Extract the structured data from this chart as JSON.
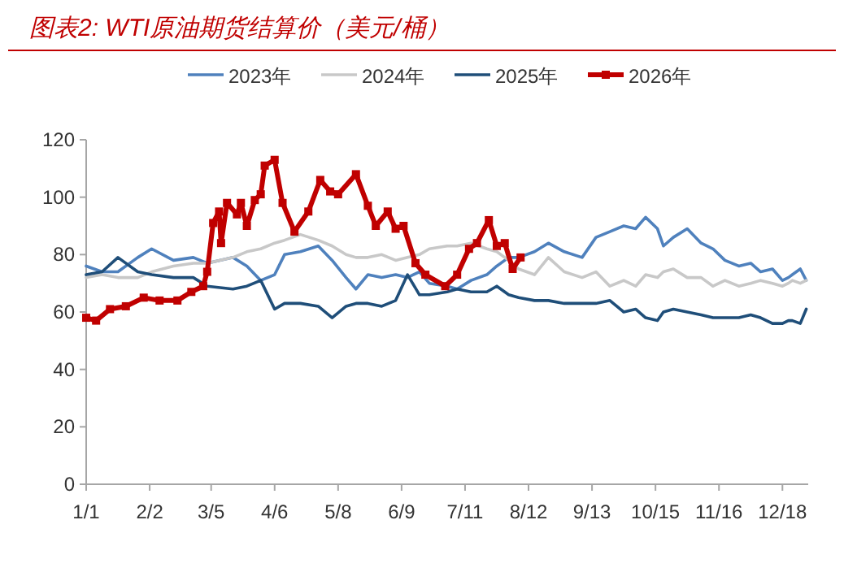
{
  "chart_data": {
    "type": "line",
    "title": "图表2:  WTI原油期货结算价（美元/桶）",
    "x": [
      "--01-01",
      "--01-09",
      "--01-17",
      "--01-27",
      "--02-03",
      "--02-14",
      "--02-24",
      "--03-03",
      "--03-16",
      "--03-23",
      "--03-30",
      "--04-06",
      "--04-11",
      "--04-19",
      "--04-28",
      "--05-05",
      "--05-12",
      "--05-17",
      "--05-23",
      "--05-30",
      "--06-06",
      "--06-12",
      "--06-18",
      "--06-23",
      "--07-02",
      "--07-07",
      "--07-14",
      "--07-22",
      "--07-27",
      "--08-02",
      "--08-07",
      "--08-15",
      "--08-22",
      "--08-30",
      "--09-08",
      "--09-15",
      "--09-22",
      "--09-29",
      "--10-05",
      "--10-10",
      "--10-16",
      "--10-19",
      "--10-24",
      "--10-31",
      "--11-07",
      "--11-13",
      "--11-19",
      "--11-26",
      "--12-02",
      "--12-07",
      "--12-13",
      "--12-18",
      "--12-21",
      "--12-23",
      "--12-27",
      "--12-30"
    ],
    "series": [
      {
        "name": "2023年",
        "color": "#4f81bd",
        "values": [
          76,
          74,
          74,
          79,
          82,
          78,
          79,
          77,
          79,
          76,
          71,
          73,
          80,
          81,
          83,
          78,
          72,
          68,
          73,
          72,
          73,
          72,
          74,
          70,
          69,
          68,
          71,
          73,
          76,
          79,
          79,
          81,
          84,
          81,
          79,
          86,
          88,
          90,
          89,
          93,
          89,
          83,
          86,
          89,
          84,
          82,
          78,
          76,
          77,
          74,
          75,
          71,
          72,
          73,
          75,
          71
        ]
      },
      {
        "name": "2024年",
        "color": "#c8c8c8",
        "values": [
          72,
          73,
          72,
          72,
          74,
          76,
          77,
          77,
          79,
          81,
          82,
          84,
          85,
          87,
          85,
          83,
          80,
          79,
          79,
          80,
          78,
          79,
          80,
          82,
          83,
          83,
          84,
          82,
          81,
          78,
          75,
          73,
          79,
          74,
          72,
          74,
          69,
          71,
          69,
          73,
          72,
          74,
          75,
          72,
          72,
          69,
          71,
          69,
          70,
          71,
          70,
          69,
          70,
          71,
          70,
          71
        ]
      },
      {
        "name": "2025年",
        "color": "#1f4e79",
        "values": [
          73,
          74,
          79,
          74,
          73,
          72,
          72,
          69,
          68,
          69,
          71,
          61,
          63,
          63,
          62,
          58,
          62,
          63,
          63,
          62,
          64,
          73,
          66,
          66,
          67,
          68,
          67,
          67,
          69,
          66,
          65,
          64,
          64,
          63,
          63,
          63,
          64,
          60,
          61,
          58,
          57,
          60,
          61,
          60,
          59,
          58,
          58,
          58,
          59,
          58,
          56,
          56,
          57,
          57,
          56,
          61
        ]
      },
      {
        "name": "2026年",
        "color": "#c00000",
        "marker": "square",
        "x": [
          "--01-01",
          "--01-06",
          "--01-13",
          "--01-21",
          "--01-30",
          "--02-07",
          "--02-16",
          "--02-23",
          "--03-01",
          "--03-03",
          "--03-06",
          "--03-09",
          "--03-10",
          "--03-13",
          "--03-18",
          "--03-20",
          "--03-23",
          "--03-27",
          "--03-30",
          "--04-01",
          "--04-06",
          "--04-10",
          "--04-16",
          "--04-23",
          "--04-29",
          "--05-04",
          "--05-08",
          "--05-17",
          "--05-23",
          "--05-27",
          "--06-02",
          "--06-06",
          "--06-10",
          "--06-16",
          "--06-21",
          "--07-01",
          "--07-07",
          "--07-13",
          "--07-17",
          "--07-23",
          "--07-27",
          "--07-31",
          "--08-04",
          "--08-08"
        ],
        "values": [
          58,
          57,
          61,
          62,
          65,
          64,
          64,
          67,
          69,
          74,
          91,
          95,
          84,
          98,
          94,
          98,
          90,
          99,
          101,
          111,
          113,
          98,
          88,
          95,
          106,
          102,
          101,
          108,
          97,
          90,
          95,
          89,
          90,
          77,
          73,
          69,
          73,
          82,
          84,
          92,
          83,
          84,
          75,
          79
        ]
      }
    ],
    "xlim": [
      "--01-01",
      "--12-31"
    ],
    "xticks": [
      {
        "value": "--01-01",
        "label": "1/1"
      },
      {
        "value": "--02-02",
        "label": "2/2"
      },
      {
        "value": "--03-05",
        "label": "3/5"
      },
      {
        "value": "--04-06",
        "label": "4/6"
      },
      {
        "value": "--05-08",
        "label": "5/8"
      },
      {
        "value": "--06-09",
        "label": "6/9"
      },
      {
        "value": "--07-11",
        "label": "7/11"
      },
      {
        "value": "--08-12",
        "label": "8/12"
      },
      {
        "value": "--09-13",
        "label": "9/13"
      },
      {
        "value": "--10-15",
        "label": "10/15"
      },
      {
        "value": "--11-16",
        "label": "11/16"
      },
      {
        "value": "--12-18",
        "label": "12/18"
      }
    ],
    "ylim": [
      0,
      120
    ],
    "yticks": [
      0,
      20,
      40,
      60,
      80,
      100,
      120
    ],
    "legend": "top",
    "grid": false
  }
}
